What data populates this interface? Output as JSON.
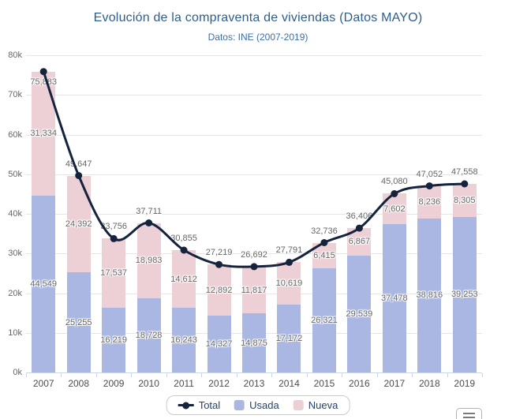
{
  "chart_data": {
    "type": "bar",
    "subtype": "stacked-bars-with-spline-line",
    "title": "Evolución de la compraventa de viviendas (Datos MAYO)",
    "subtitle": "Datos: INE (2007-2019)",
    "categories": [
      "2007",
      "2008",
      "2009",
      "2010",
      "2011",
      "2012",
      "2013",
      "2014",
      "2015",
      "2016",
      "2017",
      "2018",
      "2019"
    ],
    "series": [
      {
        "name": "Total",
        "type": "line",
        "color": "#16233d",
        "values": [
          75883,
          49647,
          33756,
          37711,
          30855,
          27219,
          26692,
          27791,
          32736,
          36406,
          45080,
          47052,
          47558
        ]
      },
      {
        "name": "Usada",
        "type": "bar",
        "color": "#a9b7e2",
        "values": [
          44549,
          25255,
          16219,
          18728,
          16243,
          14327,
          14875,
          17172,
          26321,
          29539,
          37478,
          38816,
          39253
        ]
      },
      {
        "name": "Nueva",
        "type": "bar",
        "color": "#ecd0d6",
        "values": [
          31334,
          24392,
          17537,
          18983,
          14612,
          12892,
          11817,
          10619,
          6415,
          6867,
          7602,
          8236,
          8305
        ]
      }
    ],
    "stacked": true,
    "grid": true,
    "legend_position": "bottom",
    "ylim": [
      0,
      80000
    ],
    "ytick_interval": 10000,
    "ytick_labels": [
      "0k",
      "10k",
      "20k",
      "30k",
      "40k",
      "50k",
      "60k",
      "70k",
      "80k"
    ],
    "number_format": "thousands-comma"
  },
  "colors": {
    "title_text": "#2f5d8a",
    "subtitle_text": "#3a6ea8",
    "data_label": "#666666",
    "grid_line": "#e6e6e6",
    "axis_line": "#ccd6eb",
    "legend_text": "#26436b"
  },
  "context_menu": {
    "icon": "hamburger-menu-icon"
  }
}
